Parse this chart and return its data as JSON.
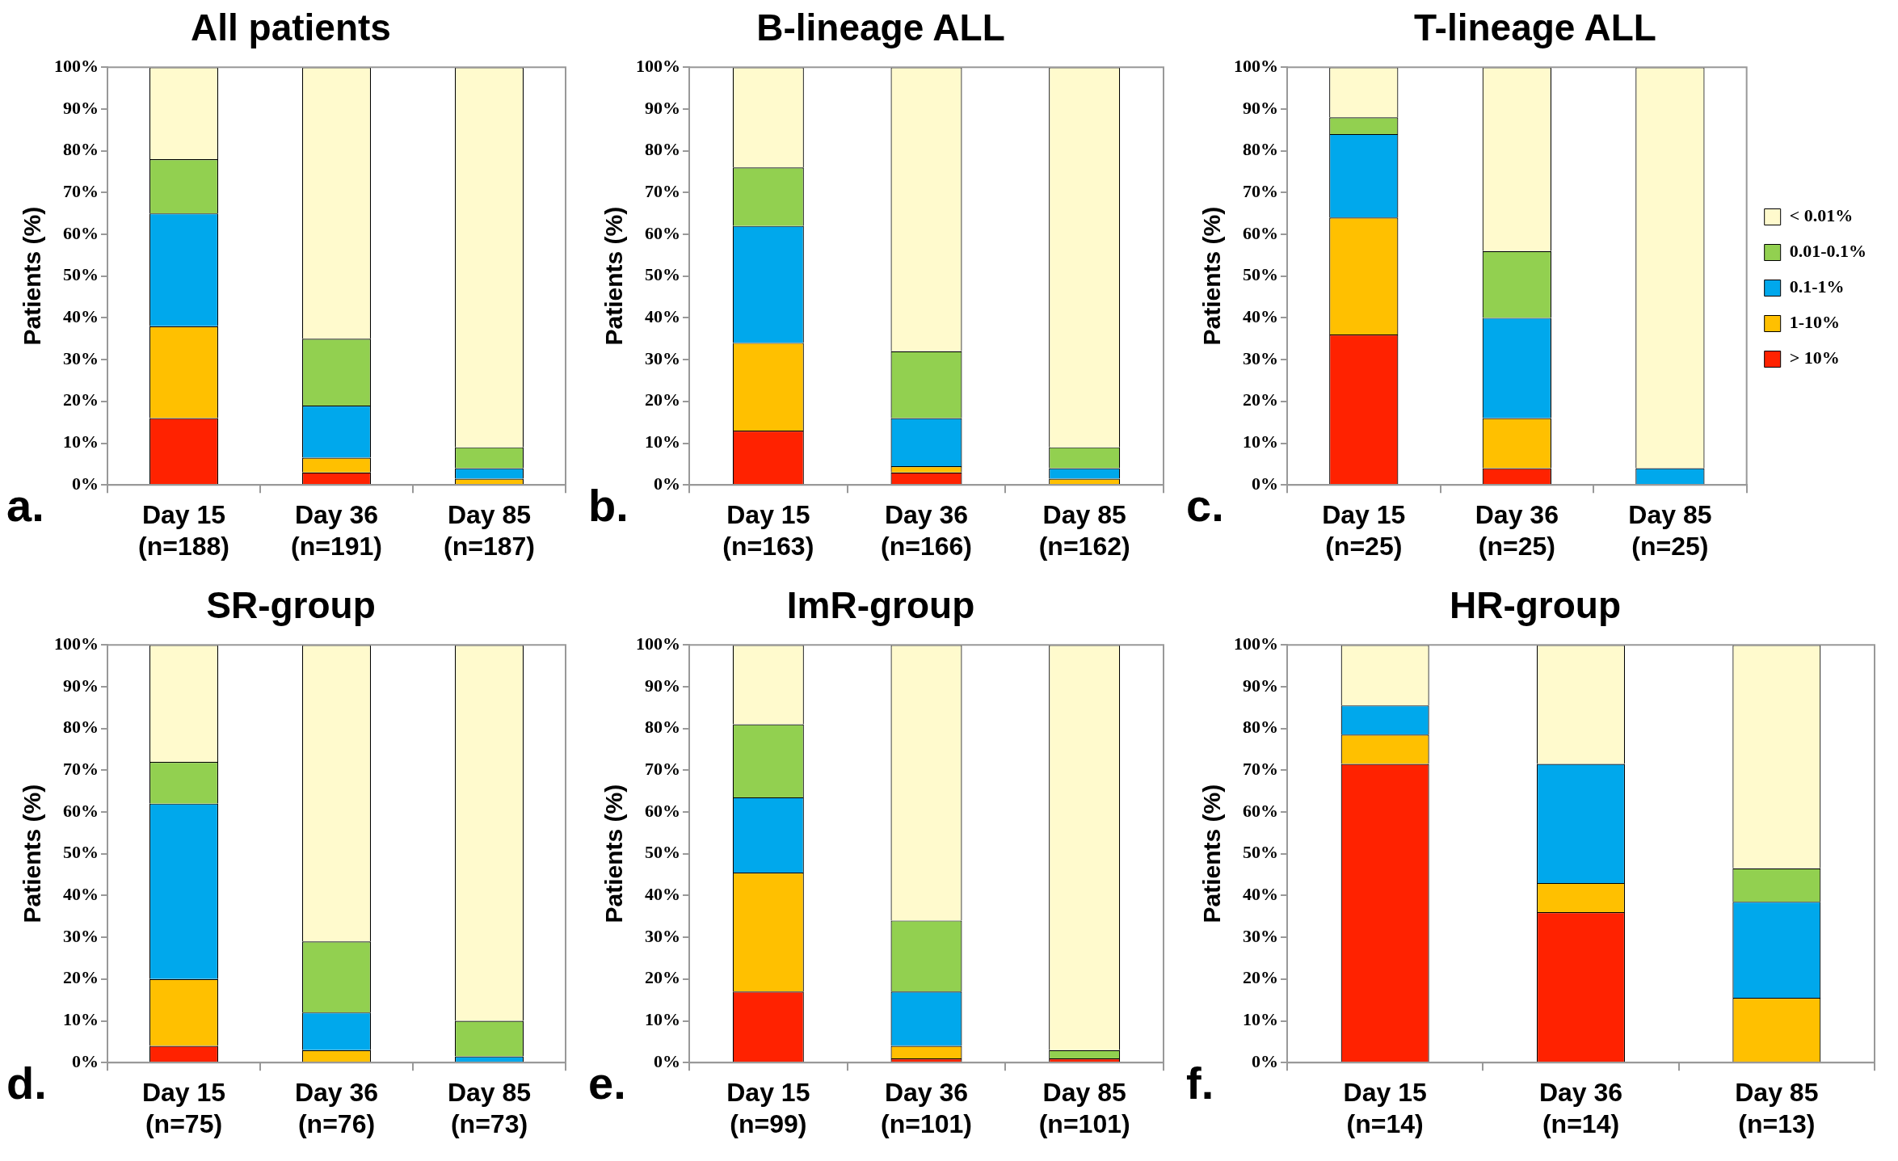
{
  "chart_data": [
    {
      "type": "bar",
      "title": "All patients",
      "ylabel": "Patients (%)",
      "annotations": [
        "a."
      ],
      "stacked": true,
      "grid": false,
      "legend": false,
      "categories": [
        "Day 15 (n=188)",
        "Day 36 (n=191)",
        "Day 85 (n=187)"
      ],
      "ylim": [
        0,
        100
      ],
      "yticks": [
        {
          "value": 0,
          "label": "0%"
        },
        {
          "value": 10,
          "label": "10%"
        },
        {
          "value": 20,
          "label": "20%"
        },
        {
          "value": 30,
          "label": "30%"
        },
        {
          "value": 40,
          "label": "40%"
        },
        {
          "value": 50,
          "label": "50%"
        },
        {
          "value": 60,
          "label": "60%"
        },
        {
          "value": 70,
          "label": "70%"
        },
        {
          "value": 80,
          "label": "80%"
        },
        {
          "value": 90,
          "label": "90%"
        },
        {
          "value": 100,
          "label": "100%"
        }
      ],
      "series": [
        {
          "color": "#ff2200",
          "values": [
            16,
            3,
            0
          ]
        },
        {
          "color": "#ffc000",
          "values": [
            22,
            3.5,
            1.5
          ]
        },
        {
          "color": "#00a8ec",
          "values": [
            27,
            12.5,
            2.5
          ]
        },
        {
          "color": "#92d050",
          "values": [
            13,
            16,
            5
          ]
        },
        {
          "color": "#fffacd",
          "values": [
            22,
            65,
            91
          ]
        }
      ]
    },
    {
      "type": "bar",
      "title": "B-lineage ALL",
      "ylabel": "Patients (%)",
      "annotations": [
        "b."
      ],
      "stacked": true,
      "grid": false,
      "legend": false,
      "categories": [
        "Day 15 (n=163)",
        "Day 36 (n=166)",
        "Day 85 (n=162)"
      ],
      "ylim": [
        0,
        100
      ],
      "yticks": [
        {
          "value": 0,
          "label": "0%"
        },
        {
          "value": 10,
          "label": "10%"
        },
        {
          "value": 20,
          "label": "20%"
        },
        {
          "value": 30,
          "label": "30%"
        },
        {
          "value": 40,
          "label": "40%"
        },
        {
          "value": 50,
          "label": "50%"
        },
        {
          "value": 60,
          "label": "60%"
        },
        {
          "value": 70,
          "label": "70%"
        },
        {
          "value": 80,
          "label": "80%"
        },
        {
          "value": 90,
          "label": "90%"
        },
        {
          "value": 100,
          "label": "100%"
        }
      ],
      "series": [
        {
          "color": "#ff2200",
          "values": [
            13,
            3,
            0
          ]
        },
        {
          "color": "#ffc000",
          "values": [
            21,
            1.5,
            1.5
          ]
        },
        {
          "color": "#00a8ec",
          "values": [
            28,
            11.5,
            2.5
          ]
        },
        {
          "color": "#92d050",
          "values": [
            14,
            16,
            5
          ]
        },
        {
          "color": "#fffacd",
          "values": [
            24,
            68,
            91
          ]
        }
      ]
    },
    {
      "type": "bar",
      "title": "T-lineage ALL",
      "ylabel": "Patients (%)",
      "annotations": [
        "c."
      ],
      "stacked": true,
      "grid": false,
      "legend": "right",
      "categories": [
        "Day 15 (n=25)",
        "Day 36 (n=25)",
        "Day 85 (n=25)"
      ],
      "ylim": [
        0,
        100
      ],
      "yticks": [
        {
          "value": 0,
          "label": "0%"
        },
        {
          "value": 10,
          "label": "10%"
        },
        {
          "value": 20,
          "label": "20%"
        },
        {
          "value": 30,
          "label": "30%"
        },
        {
          "value": 40,
          "label": "40%"
        },
        {
          "value": 50,
          "label": "50%"
        },
        {
          "value": 60,
          "label": "60%"
        },
        {
          "value": 70,
          "label": "70%"
        },
        {
          "value": 80,
          "label": "80%"
        },
        {
          "value": 90,
          "label": "90%"
        },
        {
          "value": 100,
          "label": "100%"
        }
      ],
      "series": [
        {
          "name": "> 10%",
          "color": "#ff2200",
          "values": [
            36,
            4,
            0
          ]
        },
        {
          "name": "1-10%",
          "color": "#ffc000",
          "values": [
            28,
            12,
            0
          ]
        },
        {
          "name": "0.1-1%",
          "color": "#00a8ec",
          "values": [
            20,
            24,
            4
          ]
        },
        {
          "name": "0.01-0.1%",
          "color": "#92d050",
          "values": [
            4,
            16,
            0
          ]
        },
        {
          "name": "< 0.01%",
          "color": "#fffacd",
          "values": [
            12,
            44,
            96
          ]
        }
      ]
    },
    {
      "type": "bar",
      "title": "SR-group",
      "ylabel": "Patients (%)",
      "annotations": [
        "d."
      ],
      "stacked": true,
      "grid": false,
      "legend": false,
      "categories": [
        "Day 15 (n=75)",
        "Day 36 (n=76)",
        "Day 85 (n=73)"
      ],
      "ylim": [
        0,
        100
      ],
      "yticks": [
        {
          "value": 0,
          "label": "0%"
        },
        {
          "value": 10,
          "label": "10%"
        },
        {
          "value": 20,
          "label": "20%"
        },
        {
          "value": 30,
          "label": "30%"
        },
        {
          "value": 40,
          "label": "40%"
        },
        {
          "value": 50,
          "label": "50%"
        },
        {
          "value": 60,
          "label": "60%"
        },
        {
          "value": 70,
          "label": "70%"
        },
        {
          "value": 80,
          "label": "80%"
        },
        {
          "value": 90,
          "label": "90%"
        },
        {
          "value": 100,
          "label": "100%"
        }
      ],
      "series": [
        {
          "color": "#ff2200",
          "values": [
            4,
            0,
            0
          ]
        },
        {
          "color": "#ffc000",
          "values": [
            16,
            3,
            0
          ]
        },
        {
          "color": "#00a8ec",
          "values": [
            42,
            9,
            1.5
          ]
        },
        {
          "color": "#92d050",
          "values": [
            10,
            17,
            8.5
          ]
        },
        {
          "color": "#fffacd",
          "values": [
            28,
            71,
            90
          ]
        }
      ]
    },
    {
      "type": "bar",
      "title": "ImR-group",
      "ylabel": "Patients (%)",
      "annotations": [
        "e."
      ],
      "stacked": true,
      "grid": false,
      "legend": false,
      "categories": [
        "Day 15 (n=99)",
        "Day 36 (n=101)",
        "Day 85 (n=101)"
      ],
      "ylim": [
        0,
        100
      ],
      "yticks": [
        {
          "value": 0,
          "label": "0%"
        },
        {
          "value": 10,
          "label": "10%"
        },
        {
          "value": 20,
          "label": "20%"
        },
        {
          "value": 30,
          "label": "30%"
        },
        {
          "value": 40,
          "label": "40%"
        },
        {
          "value": 50,
          "label": "50%"
        },
        {
          "value": 60,
          "label": "60%"
        },
        {
          "value": 70,
          "label": "70%"
        },
        {
          "value": 80,
          "label": "80%"
        },
        {
          "value": 90,
          "label": "90%"
        },
        {
          "value": 100,
          "label": "100%"
        }
      ],
      "series": [
        {
          "color": "#ff2200",
          "values": [
            17,
            1,
            1
          ]
        },
        {
          "color": "#ffc000",
          "values": [
            28.5,
            3,
            0
          ]
        },
        {
          "color": "#00a8ec",
          "values": [
            18,
            13,
            0
          ]
        },
        {
          "color": "#92d050",
          "values": [
            17.5,
            17,
            2
          ]
        },
        {
          "color": "#fffacd",
          "values": [
            19,
            66,
            97
          ]
        }
      ]
    },
    {
      "type": "bar",
      "title": "HR-group",
      "ylabel": "Patients (%)",
      "annotations": [
        "f."
      ],
      "stacked": true,
      "grid": false,
      "legend": false,
      "categories": [
        "Day 15 (n=14)",
        "Day 36 (n=14)",
        "Day 85 (n=13)"
      ],
      "ylim": [
        0,
        100
      ],
      "yticks": [
        {
          "value": 0,
          "label": "0%"
        },
        {
          "value": 10,
          "label": "10%"
        },
        {
          "value": 20,
          "label": "20%"
        },
        {
          "value": 30,
          "label": "30%"
        },
        {
          "value": 40,
          "label": "40%"
        },
        {
          "value": 50,
          "label": "50%"
        },
        {
          "value": 60,
          "label": "60%"
        },
        {
          "value": 70,
          "label": "70%"
        },
        {
          "value": 80,
          "label": "80%"
        },
        {
          "value": 90,
          "label": "90%"
        },
        {
          "value": 100,
          "label": "100%"
        }
      ],
      "series": [
        {
          "color": "#ff2200",
          "values": [
            71.5,
            36,
            0
          ]
        },
        {
          "color": "#ffc000",
          "values": [
            7,
            7,
            15.5
          ]
        },
        {
          "color": "#00a8ec",
          "values": [
            7,
            28.5,
            23
          ]
        },
        {
          "color": "#92d050",
          "values": [
            0,
            0,
            8
          ]
        },
        {
          "color": "#fffacd",
          "values": [
            14.5,
            28.5,
            53.5
          ]
        }
      ]
    }
  ]
}
